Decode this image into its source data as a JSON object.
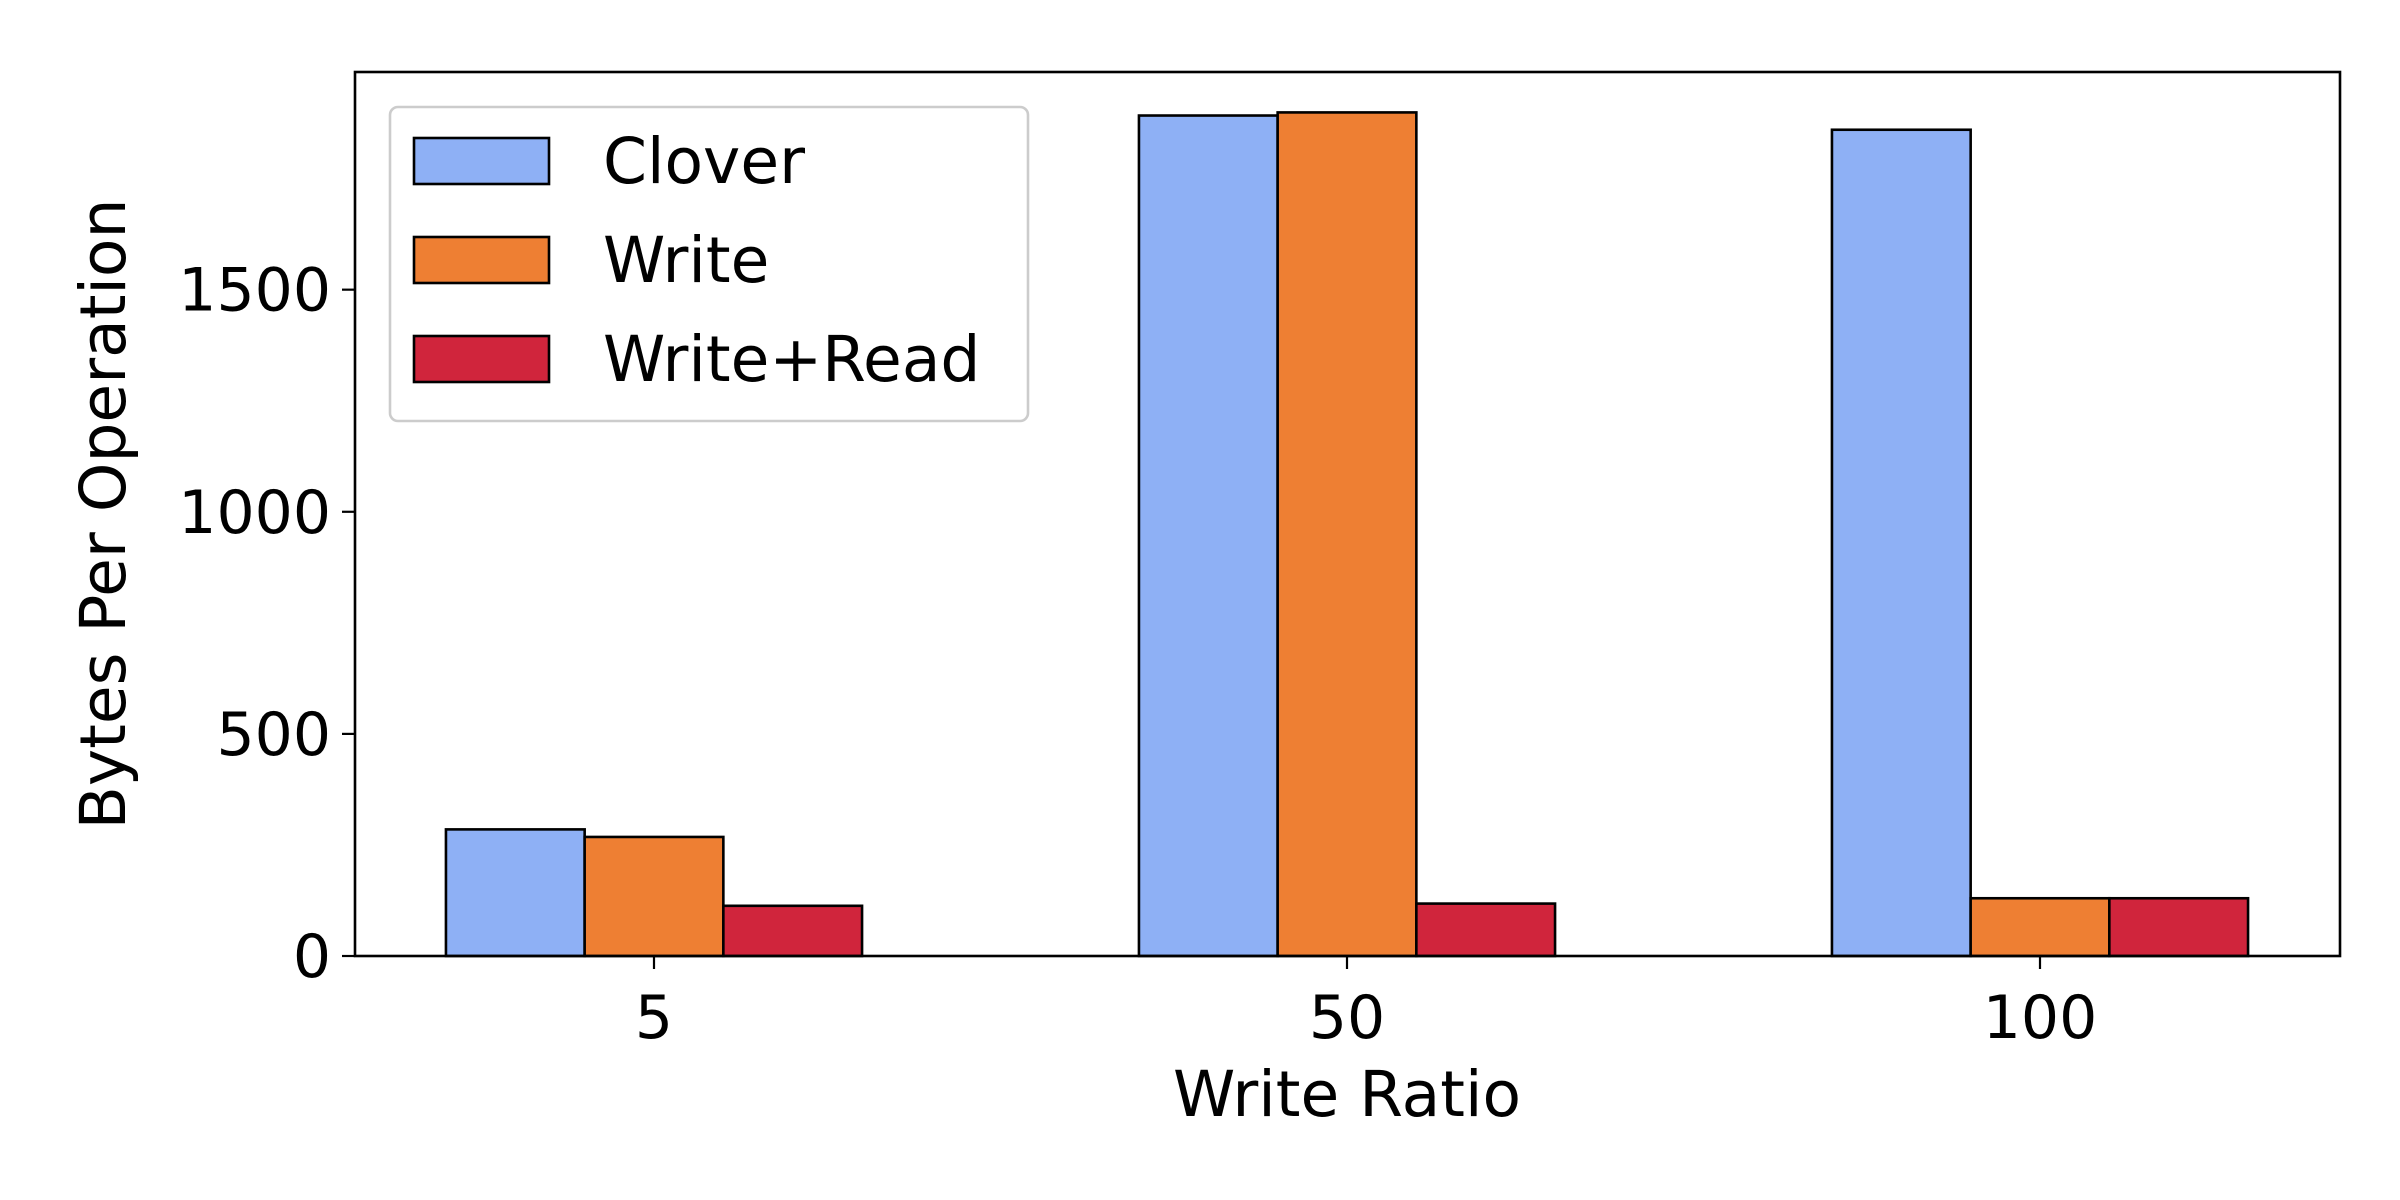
{
  "chart_data": {
    "type": "bar",
    "title": "",
    "xlabel": "Write Ratio",
    "ylabel": "Bytes Per Operation",
    "categories": [
      "5",
      "50",
      "100"
    ],
    "ylim": [
      0,
      1990
    ],
    "yticks": [
      0,
      500,
      1000,
      1500
    ],
    "ytick_labels": [
      "0",
      "500",
      "1000",
      "1500"
    ],
    "grid": false,
    "legend_position": "top-left",
    "series": [
      {
        "name": "Clover",
        "color": "#8EB0F5",
        "values": [
          285,
          1892,
          1860
        ]
      },
      {
        "name": "Write",
        "color": "#EE7F33",
        "values": [
          268,
          1899,
          130
        ]
      },
      {
        "name": "Write+Read",
        "color": "#D0253C",
        "values": [
          113,
          118,
          130
        ]
      }
    ]
  }
}
